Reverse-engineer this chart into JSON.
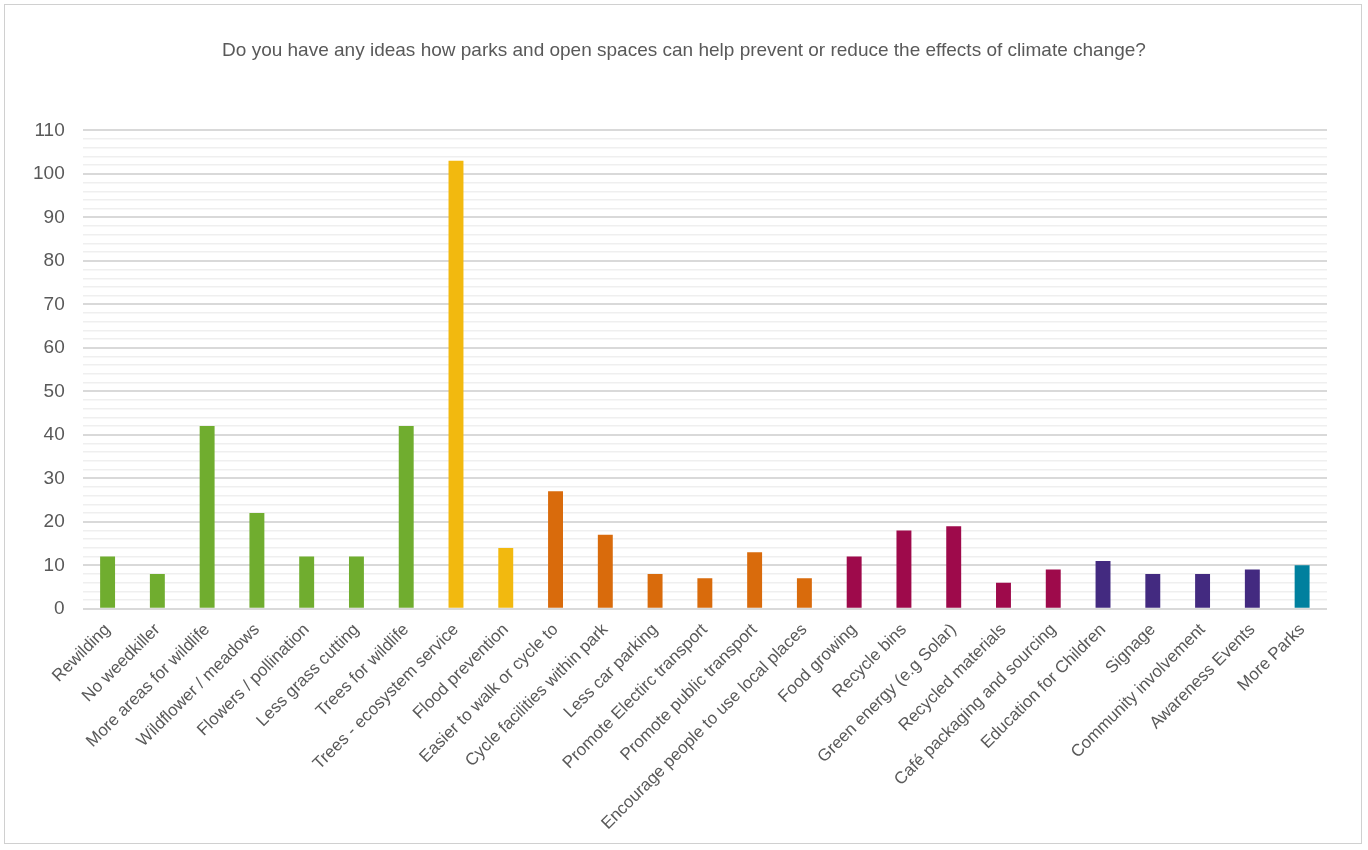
{
  "chart_data": {
    "type": "bar",
    "title": "Do  you have any ideas how parks and open spaces can help prevent or reduce the effects of climate change?",
    "categories": [
      "Rewilding",
      "No weedkiller",
      "More areas for wildlife",
      "Wildflower / meadows",
      "Flowers / pollination",
      "Less grass cutting",
      "Trees for wildlife",
      "Trees - ecosystem service",
      "Flood prevention",
      "Easier to walk or cycle to",
      "Cycle facilities within park",
      "Less car parking",
      "Promote Electirc transport",
      "Promote public transport",
      "Encourage people to use local places",
      "Food growing",
      "Recycle bins",
      "Green energy (e.g Solar)",
      "Recycled materials",
      "Café packaging and sourcing",
      "Education for Children",
      "Signage",
      "Community involvement",
      "Awareness Events",
      "More Parks"
    ],
    "values": [
      12,
      8,
      42,
      22,
      12,
      12,
      42,
      103,
      14,
      27,
      17,
      8,
      7,
      13,
      7,
      12,
      18,
      19,
      6,
      9,
      11,
      8,
      8,
      9,
      10
    ],
    "colors": [
      "#70ad2f",
      "#70ad2f",
      "#70ad2f",
      "#70ad2f",
      "#70ad2f",
      "#70ad2f",
      "#70ad2f",
      "#f2b90f",
      "#f2b90f",
      "#d96b0c",
      "#d96b0c",
      "#d96b0c",
      "#d96b0c",
      "#d96b0c",
      "#d96b0c",
      "#9e0a4b",
      "#9e0a4b",
      "#9e0a4b",
      "#9e0a4b",
      "#9e0a4b",
      "#432a80",
      "#432a80",
      "#432a80",
      "#432a80",
      "#00809e"
    ],
    "ylim": [
      0,
      110
    ],
    "yticks": [
      0,
      {
        "value": 2,
        "label": null
      },
      {
        "value": 4,
        "label": null
      },
      {
        "value": 6,
        "label": null
      },
      {
        "value": 8,
        "label": null
      },
      10,
      {
        "value": 12,
        "label": null
      },
      {
        "value": 14,
        "label": null
      },
      {
        "value": 16,
        "label": null
      },
      {
        "value": 18,
        "label": null
      },
      20,
      {
        "value": 22,
        "label": null
      },
      {
        "value": 24,
        "label": null
      },
      {
        "value": 26,
        "label": null
      },
      {
        "value": 28,
        "label": null
      },
      30,
      {
        "value": 32,
        "label": null
      },
      {
        "value": 34,
        "label": null
      },
      {
        "value": 36,
        "label": null
      },
      {
        "value": 38,
        "label": null
      },
      40,
      {
        "value": 42,
        "label": null
      },
      {
        "value": 44,
        "label": null
      },
      {
        "value": 46,
        "label": null
      },
      {
        "value": 48,
        "label": null
      },
      50,
      {
        "value": 52,
        "label": null
      },
      {
        "value": 54,
        "label": null
      },
      {
        "value": 56,
        "label": null
      },
      {
        "value": 58,
        "label": null
      },
      60,
      {
        "value": 62,
        "label": null
      },
      {
        "value": 64,
        "label": null
      },
      {
        "value": 66,
        "label": null
      },
      {
        "value": 68,
        "label": null
      },
      70,
      {
        "value": 72,
        "label": null
      },
      {
        "value": 74,
        "label": null
      },
      {
        "value": 76,
        "label": null
      },
      {
        "value": 78,
        "label": null
      },
      80,
      {
        "value": 82,
        "label": null
      },
      {
        "value": 84,
        "label": null
      },
      {
        "value": 86,
        "label": null
      },
      {
        "value": 88,
        "label": null
      },
      90,
      {
        "value": 92,
        "label": null
      },
      {
        "value": 94,
        "label": null
      },
      {
        "value": 96,
        "label": null
      },
      {
        "value": 98,
        "label": null
      },
      100,
      {
        "value": 102,
        "label": null
      },
      {
        "value": 104,
        "label": null
      },
      {
        "value": 106,
        "label": null
      },
      {
        "value": 108,
        "label": null
      },
      110
    ],
    "grid": true
  }
}
